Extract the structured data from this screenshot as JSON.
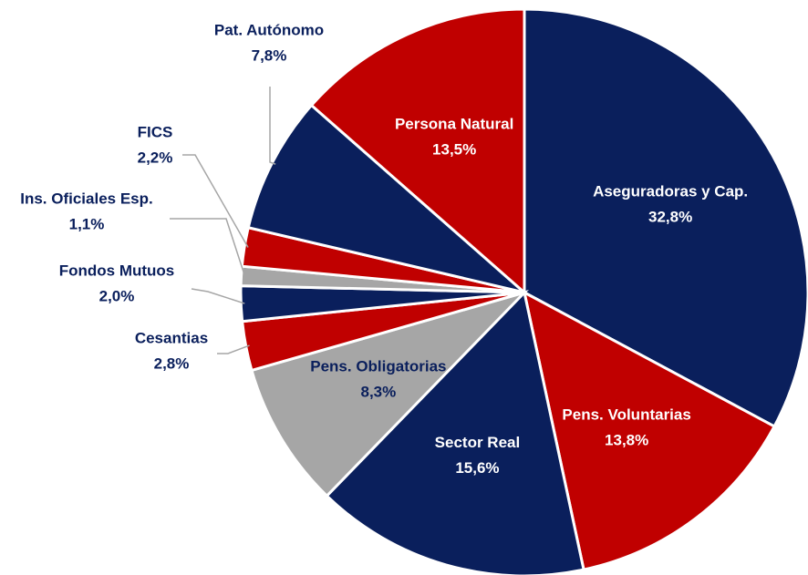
{
  "chart_data": {
    "type": "pie",
    "categories": [
      "Aseguradoras y Cap.",
      "Pens. Voluntarias",
      "Sector Real",
      "Pens. Obligatorias",
      "Cesantias",
      "Fondos Mutuos",
      "Ins. Oficiales Esp.",
      "FICS",
      "Pat. Autónomo",
      "Persona Natural"
    ],
    "values": [
      32.8,
      13.8,
      15.6,
      8.3,
      2.8,
      2.0,
      1.1,
      2.2,
      7.8,
      13.5
    ],
    "value_labels": [
      "32,8%",
      "13,8%",
      "15,6%",
      "8,3%",
      "2,8%",
      "2,0%",
      "1,1%",
      "2,2%",
      "7,8%",
      "13,5%"
    ],
    "colors": [
      "#0a1f5c",
      "#c00000",
      "#0a1f5c",
      "#a6a6a6",
      "#c00000",
      "#0a1f5c",
      "#a6a6a6",
      "#c00000",
      "#0a1f5c",
      "#c00000"
    ]
  }
}
